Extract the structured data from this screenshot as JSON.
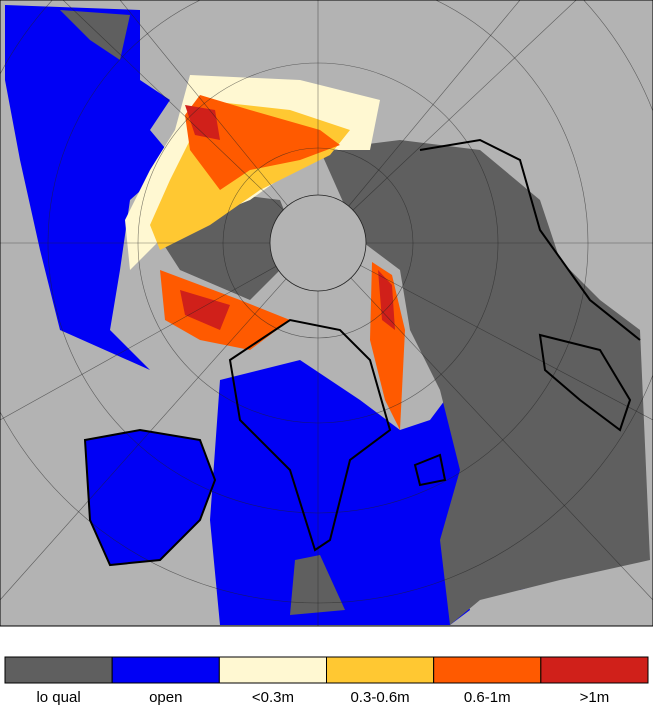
{
  "legend": {
    "items": [
      {
        "label": "lo qual",
        "color": "#5f5f5f"
      },
      {
        "label": "open",
        "color": "#0000f5"
      },
      {
        "label": "<0.3m",
        "color": "#fff8d2"
      },
      {
        "label": "0.3-0.6m",
        "color": "#ffc832"
      },
      {
        "label": "0.6-1m",
        "color": "#ff5a00"
      },
      {
        "label": ">1m",
        "color": "#d0201a"
      }
    ]
  }
}
